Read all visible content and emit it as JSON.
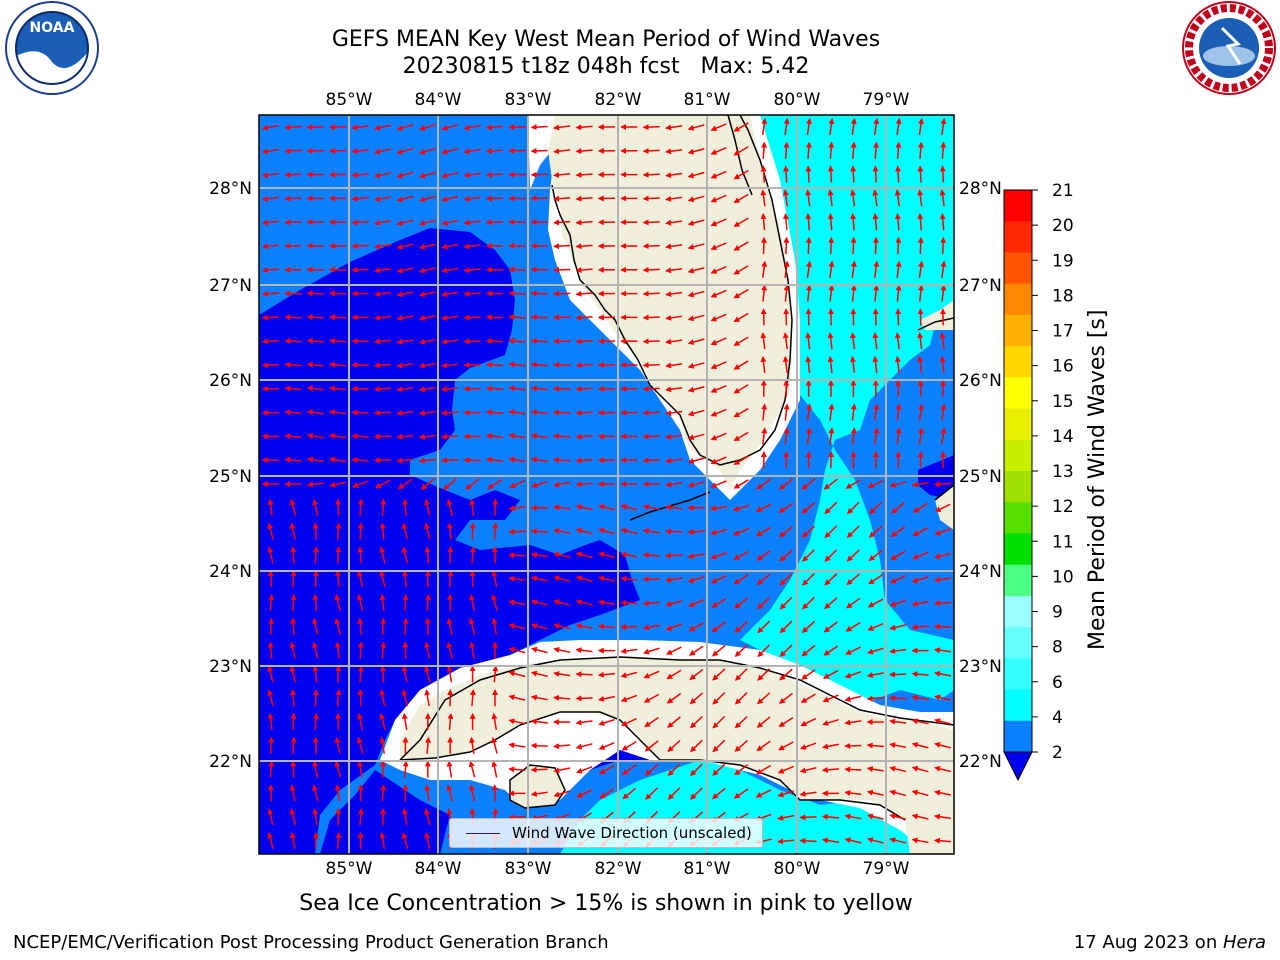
{
  "title": {
    "line1": "GEFS MEAN Key West Mean Period of Wind Waves",
    "line2": "20230815 t18z 048h fcst   Max: 5.42"
  },
  "map": {
    "lon_labels": [
      "85°W",
      "84°W",
      "83°W",
      "82°W",
      "81°W",
      "80°W",
      "79°W"
    ],
    "lat_labels": [
      "28°N",
      "27°N",
      "26°N",
      "25°N",
      "24°N",
      "23°N",
      "22°N"
    ],
    "colors": {
      "land": "#efefdc",
      "period_2_4": "#0b80ff",
      "period_below_2": "#0000f0",
      "period_4_6": "#00ffff",
      "arrows": "#ff0000",
      "gridlines": "#b4b4b4",
      "coastline": "#000000"
    },
    "legend_label": "Wind Wave Direction (unscaled)"
  },
  "colorbar": {
    "label": "Mean Period of Wind Waves [s]",
    "ticks": [
      "2",
      "4",
      "6",
      "8",
      "9",
      "10",
      "11",
      "12",
      "13",
      "14",
      "15",
      "16",
      "17",
      "18",
      "19",
      "20",
      "21"
    ],
    "colors": [
      "#0b80ff",
      "#00ffff",
      "#33ffff",
      "#66ffff",
      "#99ffff",
      "#4dff80",
      "#00e000",
      "#55e000",
      "#a0e000",
      "#c8ee00",
      "#e8f000",
      "#ffff00",
      "#ffd700",
      "#ffb000",
      "#ff8800",
      "#ff5500",
      "#ff2800",
      "#ff0000"
    ],
    "extend_color": "#0000f0"
  },
  "footer": {
    "ice_note": "Sea Ice Concentration > 15% is shown in pink to yellow",
    "credit_left": "NCEP/EMC/Verification Post Processing Product Generation Branch",
    "date_prefix": "17 Aug 2023 on ",
    "machine": "Hera"
  },
  "logos": {
    "noaa_text": "NOAA",
    "nws_text": "NATIONAL WEATHER SERVICE"
  }
}
